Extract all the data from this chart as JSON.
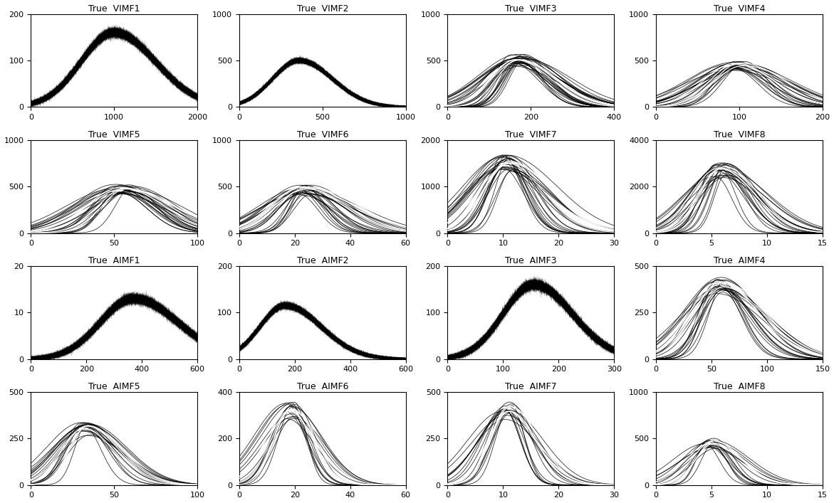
{
  "subplots": [
    {
      "title": "True  VIMF1",
      "xlim": [
        0,
        2000
      ],
      "ylim": [
        0,
        200
      ],
      "peak_x": 1000,
      "peak_y": 160,
      "sigma_l": 400,
      "sigma_r": 500,
      "noise": 0.55,
      "style": "noisy",
      "xticks": [
        0,
        1000,
        2000
      ],
      "yticks": [
        0,
        100,
        200
      ]
    },
    {
      "title": "True  VIMF2",
      "xlim": [
        0,
        1000
      ],
      "ylim": [
        0,
        1000
      ],
      "peak_x": 360,
      "peak_y": 500,
      "sigma_l": 160,
      "sigma_r": 200,
      "noise": 0.5,
      "style": "noisy",
      "xticks": [
        0,
        500,
        1000
      ],
      "yticks": [
        0,
        500,
        1000
      ]
    },
    {
      "title": "True  VIMF3",
      "xlim": [
        0,
        400
      ],
      "ylim": [
        0,
        1000
      ],
      "peak_x": 170,
      "peak_y": 540,
      "sigma_l": 60,
      "sigma_r": 80,
      "noise": 0.3,
      "style": "multi",
      "n_curves": 30,
      "xticks": [
        0,
        200,
        400
      ],
      "yticks": [
        0,
        500,
        1000
      ]
    },
    {
      "title": "True  VIMF4",
      "xlim": [
        0,
        200
      ],
      "ylim": [
        0,
        1000
      ],
      "peak_x": 100,
      "peak_y": 480,
      "sigma_l": 35,
      "sigma_r": 45,
      "noise": 0.25,
      "style": "multi",
      "n_curves": 25,
      "xticks": [
        0,
        100,
        200
      ],
      "yticks": [
        0,
        500,
        1000
      ]
    },
    {
      "title": "True  VIMF5",
      "xlim": [
        0,
        100
      ],
      "ylim": [
        0,
        1000
      ],
      "peak_x": 57,
      "peak_y": 500,
      "sigma_l": 18,
      "sigma_r": 22,
      "noise": 0.2,
      "style": "multi",
      "n_curves": 25,
      "xticks": [
        0,
        50,
        100
      ],
      "yticks": [
        0,
        500,
        1000
      ]
    },
    {
      "title": "True  VIMF6",
      "xlim": [
        0,
        60
      ],
      "ylim": [
        0,
        1000
      ],
      "peak_x": 24,
      "peak_y": 500,
      "sigma_l": 10,
      "sigma_r": 13,
      "noise": 0.2,
      "style": "multi",
      "n_curves": 25,
      "xticks": [
        0,
        20,
        40,
        60
      ],
      "yticks": [
        0,
        500,
        1000
      ]
    },
    {
      "title": "True  VIMF7",
      "xlim": [
        0,
        30
      ],
      "ylim": [
        0,
        2000
      ],
      "peak_x": 11,
      "peak_y": 1600,
      "sigma_l": 4.5,
      "sigma_r": 6.0,
      "noise": 0.2,
      "style": "multi",
      "n_curves": 25,
      "xticks": [
        0,
        10,
        20,
        30
      ],
      "yticks": [
        0,
        1000,
        2000
      ]
    },
    {
      "title": "True  VIMF8",
      "xlim": [
        0,
        15
      ],
      "ylim": [
        0,
        4000
      ],
      "peak_x": 6.0,
      "peak_y": 2900,
      "sigma_l": 2.0,
      "sigma_r": 2.8,
      "noise": 0.2,
      "style": "multi",
      "n_curves": 25,
      "xticks": [
        0,
        5,
        10,
        15
      ],
      "yticks": [
        0,
        2000,
        4000
      ]
    },
    {
      "title": "True  AIMF1",
      "xlim": [
        0,
        600
      ],
      "ylim": [
        0,
        20
      ],
      "peak_x": 370,
      "peak_y": 13.0,
      "sigma_l": 120,
      "sigma_r": 160,
      "noise": 0.7,
      "style": "noisy",
      "xticks": [
        0,
        200,
        400,
        600
      ],
      "yticks": [
        0,
        10,
        20
      ]
    },
    {
      "title": "True  AIMF2",
      "xlim": [
        0,
        600
      ],
      "ylim": [
        0,
        200
      ],
      "peak_x": 165,
      "peak_y": 115,
      "sigma_l": 90,
      "sigma_r": 130,
      "noise": 0.55,
      "style": "noisy",
      "xticks": [
        0,
        200,
        400,
        600
      ],
      "yticks": [
        0,
        100,
        200
      ]
    },
    {
      "title": "True  AIMF3",
      "xlim": [
        0,
        300
      ],
      "ylim": [
        0,
        200
      ],
      "peak_x": 155,
      "peak_y": 160,
      "sigma_l": 55,
      "sigma_r": 70,
      "noise": 0.6,
      "style": "noisy",
      "xticks": [
        0,
        100,
        200,
        300
      ],
      "yticks": [
        0,
        100,
        200
      ]
    },
    {
      "title": "True  AIMF4",
      "xlim": [
        0,
        150
      ],
      "ylim": [
        0,
        500
      ],
      "peak_x": 58,
      "peak_y": 420,
      "sigma_l": 22,
      "sigma_r": 30,
      "noise": 0.15,
      "style": "multi",
      "n_curves": 20,
      "xticks": [
        0,
        50,
        100,
        150
      ],
      "yticks": [
        0,
        250,
        500
      ]
    },
    {
      "title": "True  AIMF5",
      "xlim": [
        0,
        100
      ],
      "ylim": [
        0,
        500
      ],
      "peak_x": 33,
      "peak_y": 320,
      "sigma_l": 13,
      "sigma_r": 16,
      "noise": 0.12,
      "style": "multi",
      "n_curves": 20,
      "xticks": [
        0,
        50,
        100
      ],
      "yticks": [
        0,
        250,
        500
      ]
    },
    {
      "title": "True  AIMF6",
      "xlim": [
        0,
        60
      ],
      "ylim": [
        0,
        400
      ],
      "peak_x": 19,
      "peak_y": 340,
      "sigma_l": 7,
      "sigma_r": 8,
      "noise": 0.1,
      "style": "multi",
      "n_curves": 15,
      "xticks": [
        0,
        20,
        40,
        60
      ],
      "yticks": [
        0,
        200,
        400
      ]
    },
    {
      "title": "True  AIMF7",
      "xlim": [
        0,
        30
      ],
      "ylim": [
        0,
        500
      ],
      "peak_x": 11,
      "peak_y": 430,
      "sigma_l": 4,
      "sigma_r": 4.5,
      "noise": 0.08,
      "style": "multi",
      "n_curves": 15,
      "xticks": [
        0,
        10,
        20,
        30
      ],
      "yticks": [
        0,
        250,
        500
      ]
    },
    {
      "title": "True  AIMF8",
      "xlim": [
        0,
        15
      ],
      "ylim": [
        0,
        1000
      ],
      "peak_x": 5.0,
      "peak_y": 480,
      "sigma_l": 1.8,
      "sigma_r": 2.2,
      "noise": 0.08,
      "style": "multi",
      "n_curves": 15,
      "xticks": [
        0,
        5,
        10,
        15
      ],
      "yticks": [
        0,
        500,
        1000
      ]
    }
  ],
  "bg_color": "#ffffff",
  "figsize": [
    11.71,
    7.07
  ],
  "dpi": 100
}
